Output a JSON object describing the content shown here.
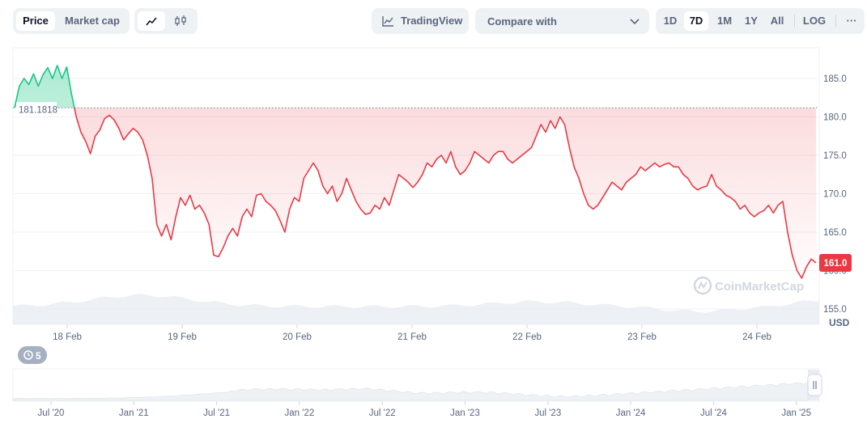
{
  "toolbar": {
    "view_tabs": [
      {
        "label": "Price",
        "active": true
      },
      {
        "label": "Market cap",
        "active": false
      }
    ],
    "chart_style_icons": [
      "line-chart-icon",
      "candlestick-icon"
    ],
    "tradingview_label": "TradingView",
    "compare_label": "Compare with",
    "ranges": [
      {
        "label": "1D",
        "active": false
      },
      {
        "label": "7D",
        "active": true
      },
      {
        "label": "1M",
        "active": false
      },
      {
        "label": "1Y",
        "active": false
      },
      {
        "label": "All",
        "active": false
      }
    ],
    "log_label": "LOG",
    "more_label": "···"
  },
  "watermark": "CoinMarketCap",
  "currency_label": "USD",
  "events_badge": "5",
  "reference_label": "181.1818",
  "current_price_label": "161.0",
  "colors": {
    "up": "#16c784",
    "down": "#ea3943",
    "grid": "#eff2f5",
    "text": "#58667e"
  },
  "chart_data": {
    "type": "line",
    "title": "",
    "xlabel": "",
    "ylabel": "USD",
    "x_ticks": [
      "18 Feb",
      "19 Feb",
      "20 Feb",
      "21 Feb",
      "22 Feb",
      "23 Feb",
      "24 Feb"
    ],
    "y_ticks": [
      155.0,
      160.0,
      165.0,
      170.0,
      175.0,
      180.0,
      185.0
    ],
    "ylim": [
      153,
      189
    ],
    "reference_line": 181.1818,
    "current_value": 161.0,
    "series": [
      {
        "values": [
          181.2,
          184.0,
          185.0,
          184.2,
          185.6,
          184.0,
          185.5,
          186.4,
          185.0,
          186.7,
          185.0,
          186.5,
          183.0,
          180.0,
          178.0,
          176.8,
          175.2,
          177.5,
          178.3,
          179.8,
          180.2,
          179.6,
          178.5,
          177.0,
          177.8,
          178.5,
          178.0,
          177.0,
          175.0,
          172.0,
          166.0,
          164.5,
          166.0,
          164.0,
          167.0,
          169.5,
          168.5,
          169.8,
          168.0,
          168.5,
          167.5,
          166.0,
          162.0,
          161.8,
          163.0,
          164.5,
          165.5,
          164.5,
          167.0,
          168.0,
          167.0,
          169.8,
          170.0,
          169.0,
          168.5,
          167.8,
          166.5,
          165.0,
          168.0,
          169.5,
          169.0,
          172.0,
          173.0,
          174.0,
          173.0,
          171.0,
          170.0,
          171.0,
          169.0,
          170.0,
          172.0,
          170.5,
          169.0,
          168.0,
          167.3,
          167.5,
          168.5,
          168.0,
          169.5,
          168.5,
          170.5,
          172.5,
          172.0,
          171.5,
          170.8,
          171.5,
          172.5,
          174.0,
          173.5,
          174.5,
          175.0,
          174.0,
          175.5,
          173.5,
          172.5,
          173.0,
          174.0,
          175.5,
          175.0,
          174.5,
          174.0,
          175.0,
          175.5,
          175.5,
          174.5,
          174.0,
          174.5,
          175.0,
          175.5,
          176.0,
          177.5,
          179.0,
          178.0,
          179.5,
          178.5,
          180.0,
          179.0,
          176.0,
          173.5,
          172.0,
          170.0,
          168.5,
          168.0,
          168.5,
          169.5,
          170.5,
          171.5,
          171.0,
          170.5,
          171.5,
          172.0,
          172.5,
          173.5,
          173.0,
          173.5,
          174.0,
          173.5,
          173.8,
          174.0,
          173.5,
          173.5,
          172.5,
          172.0,
          171.0,
          170.5,
          170.8,
          171.0,
          172.5,
          171.0,
          170.5,
          169.8,
          169.5,
          169.0,
          168.0,
          168.5,
          167.5,
          167.0,
          167.5,
          167.8,
          168.5,
          167.5,
          168.5,
          169.0,
          165.0,
          162.0,
          160.0,
          159.0,
          160.5,
          161.5,
          161.0
        ]
      }
    ],
    "volume_ticks": [
      "Jul '20",
      "Jan '21",
      "Jul '21",
      "Jan '22",
      "Jul '22",
      "Jan '23",
      "Jul '23",
      "Jan '24",
      "Jul '24",
      "Jan '25"
    ]
  }
}
